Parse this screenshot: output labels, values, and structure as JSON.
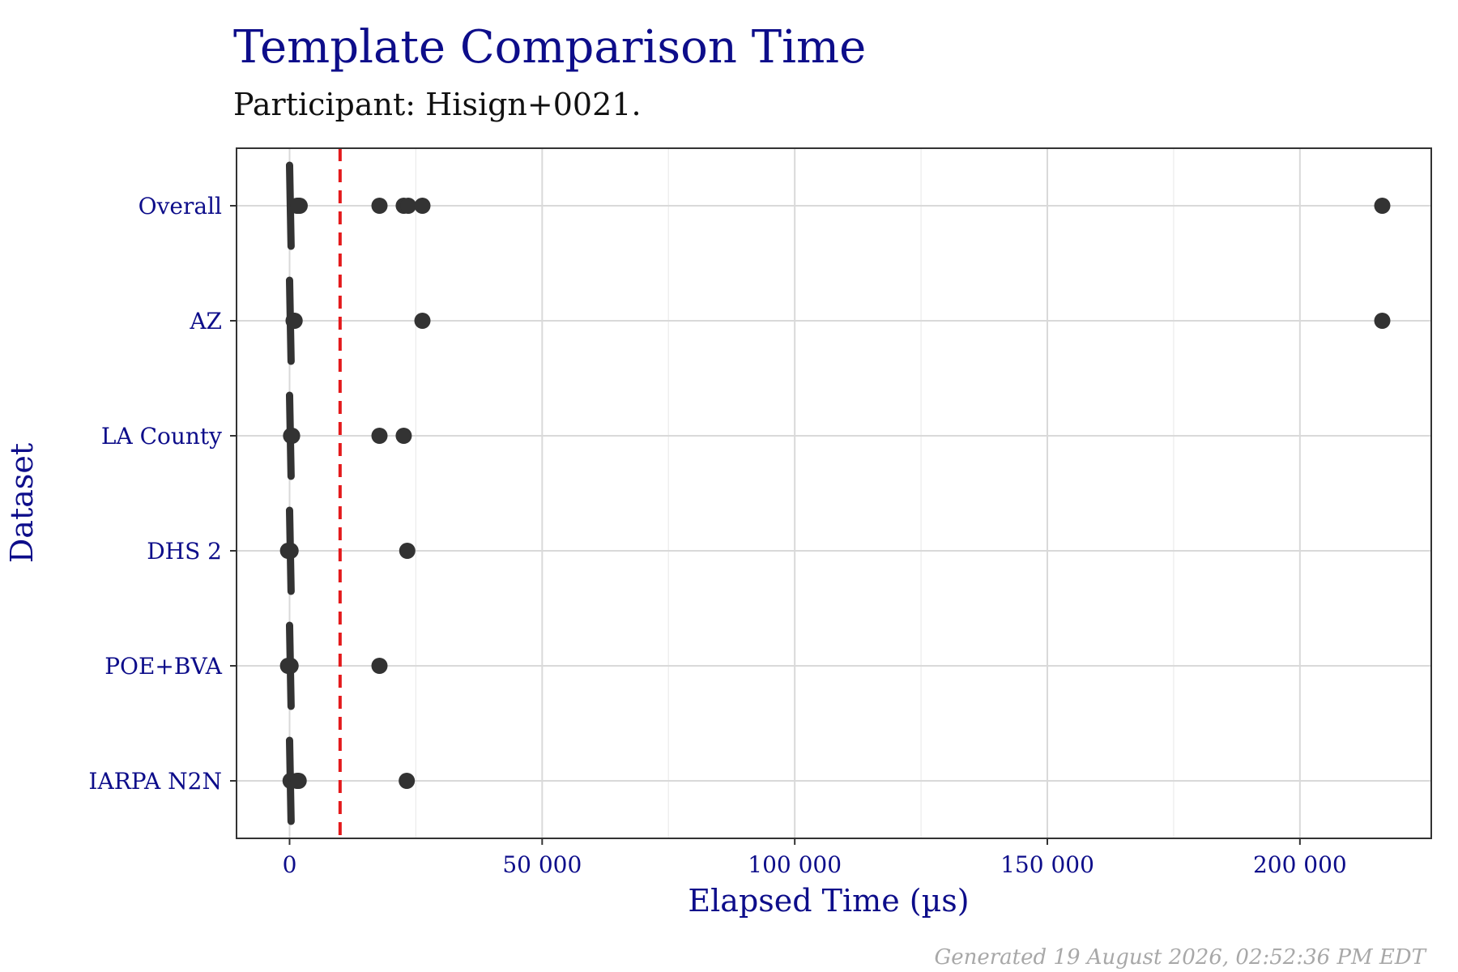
{
  "chart_data": {
    "type": "box",
    "title": "Template Comparison Time",
    "subtitle": "Participant: Hisign+0021.",
    "xlabel": "Elapsed Time (µs)",
    "ylabel": "Dataset",
    "xlim": [
      -10500,
      226000
    ],
    "x_ticks": [
      0,
      50000,
      100000,
      150000,
      200000
    ],
    "x_tick_labels": [
      "0",
      "50 000",
      "100 000",
      "150 000",
      "200 000"
    ],
    "categories": [
      "Overall",
      "AZ",
      "LA County",
      "DHS 2",
      "POE+BVA",
      "IARPA N2N"
    ],
    "reference_line": {
      "x": 10000,
      "style": "dashed",
      "color": "#e31a1c"
    },
    "colors": {
      "box": "#333333",
      "points": "#333333",
      "grid": "#d9d9d9",
      "text": "#0d0d8a"
    },
    "series": [
      {
        "category": "Overall",
        "whisker_low": 0,
        "whisker_high": 300,
        "outliers": [
          1500,
          1800,
          2000,
          17800,
          22600,
          23500,
          26300,
          216300
        ]
      },
      {
        "category": "AZ",
        "whisker_low": 0,
        "whisker_high": 300,
        "outliers": [
          800,
          1000,
          26300,
          216300
        ]
      },
      {
        "category": "LA County",
        "whisker_low": 0,
        "whisker_high": 300,
        "outliers": [
          300,
          500,
          17800,
          22600
        ]
      },
      {
        "category": "DHS 2",
        "whisker_low": 0,
        "whisker_high": 300,
        "outliers": [
          -300,
          200,
          23300
        ]
      },
      {
        "category": "POE+BVA",
        "whisker_low": 0,
        "whisker_high": 300,
        "outliers": [
          -300,
          200,
          17800
        ]
      },
      {
        "category": "IARPA N2N",
        "whisker_low": 0,
        "whisker_high": 300,
        "outliers": [
          200,
          1500,
          1800,
          23200
        ]
      }
    ]
  },
  "footer": "Generated 19 August 2026, 02:52:36 PM EDT"
}
